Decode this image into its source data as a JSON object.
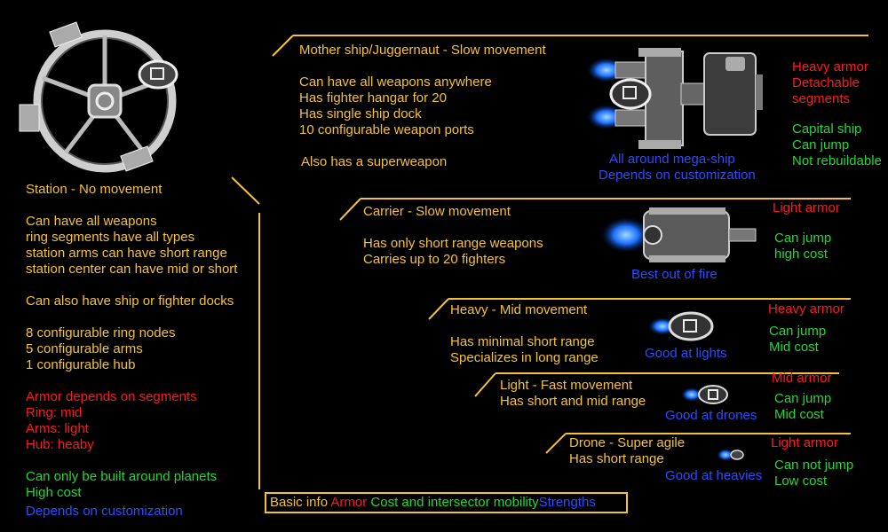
{
  "colors": {
    "info": "#f5c232",
    "armor": "#ff1a1a",
    "mobility": "#22d92f",
    "strengths": "#2a4dff"
  },
  "station": {
    "title": "Station - No movement",
    "weapons": [
      "Can have all weapons",
      "ring segments have all types",
      "station arms can have short range",
      "station center can have mid or short"
    ],
    "docks": "Can also have ship or fighter docks",
    "nodes": [
      "8 configurable ring nodes",
      "5 configurable arms",
      "1 configurable hub"
    ],
    "armor": [
      "Armor depends on segments",
      "Ring: mid",
      "Arms: light",
      "Hub: heaby"
    ],
    "mobility": [
      "Can only be built around planets",
      "High cost"
    ],
    "strength": "Depends on customization"
  },
  "mothership": {
    "title": "Mother ship/Juggernaut - Slow movement",
    "info": [
      "Can have all weapons anywhere",
      "Has fighter hangar for 20",
      "Has single ship dock",
      "10 configurable weapon ports"
    ],
    "extra": "Also has a superweapon",
    "armor": [
      "Heavy armor",
      "Detachable",
      "segments"
    ],
    "mobility": [
      "Capital ship",
      "Can jump",
      "Not rebuildable"
    ],
    "strengths": [
      "All around mega-ship",
      "Depends on customization"
    ]
  },
  "carrier": {
    "title": "Carrier - Slow movement",
    "info": [
      "Has only short range weapons",
      "Carries up to 20 fighters"
    ],
    "armor": "Light armor",
    "mobility": [
      "Can jump",
      "high cost"
    ],
    "strength": "Best out of fire"
  },
  "heavy": {
    "title": "Heavy - Mid movement",
    "info": [
      "Has minimal short range",
      "Specializes in long range"
    ],
    "armor": "Heavy armor",
    "mobility": [
      "Can jump",
      "Mid cost"
    ],
    "strength": "Good at lights"
  },
  "light": {
    "title": "Light - Fast movement",
    "info": [
      "Has short and mid range"
    ],
    "armor": "Mid armor",
    "mobility": [
      "Can jump",
      "Mid cost"
    ],
    "strength": "Good at drones"
  },
  "drone": {
    "title": "Drone - Super agile",
    "info": [
      "Has short range"
    ],
    "armor": "Light armor",
    "mobility": [
      "Can not jump",
      "Low cost"
    ],
    "strength": "Good at heavies"
  },
  "legend": {
    "info": "Basic info",
    "armor": "Armor",
    "mobility": "Cost and intersector mobility",
    "strengths": "Strengths"
  },
  "icons": [
    "station-sprite",
    "mothership-sprite",
    "carrier-sprite",
    "heavy-sprite",
    "light-sprite",
    "drone-sprite"
  ]
}
